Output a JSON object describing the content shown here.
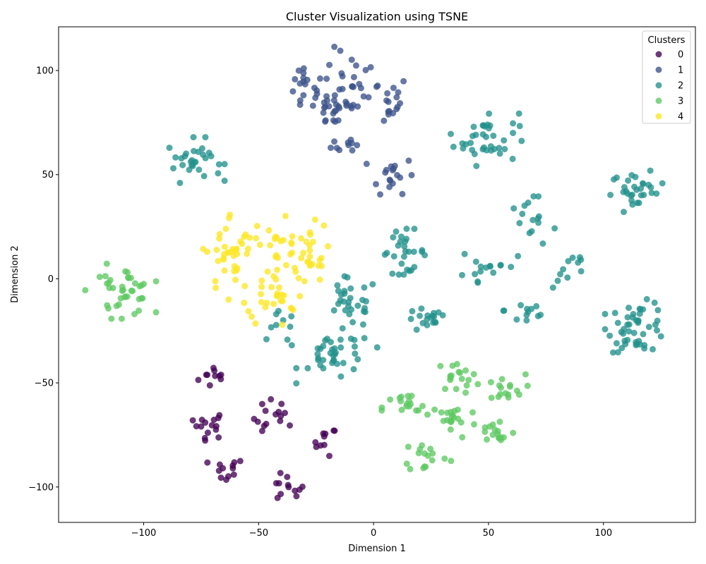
{
  "chart_data": {
    "type": "scatter",
    "title": "Cluster Visualization using TSNE",
    "xlabel": "Dimension 1",
    "ylabel": "Dimension 2",
    "xlim": [
      -137,
      140
    ],
    "ylim": [
      -117,
      121
    ],
    "xticks": [
      -100,
      -50,
      0,
      50,
      100
    ],
    "yticks": [
      -100,
      -50,
      0,
      50,
      100
    ],
    "grid": false,
    "legend": {
      "title": "Clusters",
      "placement": "top-right"
    },
    "series": [
      {
        "name": "0",
        "color": "#440154",
        "blobs": [
          {
            "cx": -68,
            "cy": -47,
            "sx": 4.0,
            "sy": 3.0,
            "n": 10
          },
          {
            "cx": -72,
            "cy": -70,
            "sx": 4.0,
            "sy": 3.5,
            "n": 15
          },
          {
            "cx": -43,
            "cy": -67,
            "sx": 4.5,
            "sy": 4.5,
            "n": 15
          },
          {
            "cx": -21,
            "cy": -78,
            "sx": 2.5,
            "sy": 3.5,
            "n": 10
          },
          {
            "cx": -64,
            "cy": -92,
            "sx": 4.0,
            "sy": 3.0,
            "n": 12
          },
          {
            "cx": -38,
            "cy": -101,
            "sx": 4.0,
            "sy": 3.5,
            "n": 12
          }
        ]
      },
      {
        "name": "1",
        "color": "#3b528b",
        "blobs": [
          {
            "cx": -30,
            "cy": 91,
            "sx": 4.5,
            "sy": 6.0,
            "n": 20
          },
          {
            "cx": -10,
            "cy": 94,
            "sx": 6.0,
            "sy": 8.0,
            "n": 25
          },
          {
            "cx": 4,
            "cy": 86,
            "sx": 6.0,
            "sy": 6.0,
            "n": 18
          },
          {
            "cx": -16,
            "cy": 81,
            "sx": 5.5,
            "sy": 4.5,
            "n": 20
          },
          {
            "cx": -11,
            "cy": 65,
            "sx": 3.5,
            "sy": 2.5,
            "n": 10
          },
          {
            "cx": 8,
            "cy": 50,
            "sx": 5.0,
            "sy": 4.5,
            "n": 18
          }
        ]
      },
      {
        "name": "2",
        "color": "#21918c",
        "blobs": [
          {
            "cx": -78,
            "cy": 57,
            "sx": 6.0,
            "sy": 5.0,
            "n": 30
          },
          {
            "cx": 49,
            "cy": 68,
            "sx": 7.0,
            "sy": 6.5,
            "n": 38
          },
          {
            "cx": 115,
            "cy": 42,
            "sx": 6.0,
            "sy": 4.5,
            "n": 30
          },
          {
            "cx": 13,
            "cy": 13,
            "sx": 5.0,
            "sy": 5.0,
            "n": 28
          },
          {
            "cx": 68,
            "cy": 22,
            "sx": 6.0,
            "sy": 9.0,
            "n": 18
          },
          {
            "cx": 86,
            "cy": 5,
            "sx": 4.0,
            "sy": 5.0,
            "n": 10
          },
          {
            "cx": 48,
            "cy": 6,
            "sx": 6.0,
            "sy": 7.0,
            "n": 14
          },
          {
            "cx": 67,
            "cy": -15,
            "sx": 5.0,
            "sy": 4.5,
            "n": 12
          },
          {
            "cx": -10,
            "cy": -12,
            "sx": 6.0,
            "sy": 6.0,
            "n": 28
          },
          {
            "cx": 23,
            "cy": -20,
            "sx": 4.5,
            "sy": 3.0,
            "n": 18
          },
          {
            "cx": -40,
            "cy": -25,
            "sx": 3.0,
            "sy": 4.5,
            "n": 10
          },
          {
            "cx": -16,
            "cy": -37,
            "sx": 8.0,
            "sy": 6.0,
            "n": 38
          },
          {
            "cx": 115,
            "cy": -23,
            "sx": 6.5,
            "sy": 6.0,
            "n": 48
          }
        ]
      },
      {
        "name": "3",
        "color": "#5ec962",
        "blobs": [
          {
            "cx": -110,
            "cy": -6,
            "sx": 7.0,
            "sy": 6.0,
            "n": 40
          },
          {
            "cx": 37,
            "cy": -47,
            "sx": 5.0,
            "sy": 3.5,
            "n": 18
          },
          {
            "cx": 56,
            "cy": -53,
            "sx": 5.0,
            "sy": 3.5,
            "n": 16
          },
          {
            "cx": 14,
            "cy": -62,
            "sx": 5.0,
            "sy": 3.5,
            "n": 18
          },
          {
            "cx": 35,
            "cy": -68,
            "sx": 5.0,
            "sy": 4.5,
            "n": 20
          },
          {
            "cx": 53,
            "cy": -74,
            "sx": 4.5,
            "sy": 4.0,
            "n": 16
          },
          {
            "cx": 23,
            "cy": -85,
            "sx": 5.0,
            "sy": 4.0,
            "n": 16
          }
        ]
      },
      {
        "name": "4",
        "color": "#fde725",
        "blobs": [
          {
            "cx": -62,
            "cy": 12,
            "sx": 5.5,
            "sy": 10.0,
            "n": 36
          },
          {
            "cx": -42,
            "cy": 5,
            "sx": 6.5,
            "sy": 14.0,
            "n": 58
          },
          {
            "cx": -28,
            "cy": 13,
            "sx": 4.0,
            "sy": 7.0,
            "n": 20
          }
        ]
      }
    ]
  }
}
